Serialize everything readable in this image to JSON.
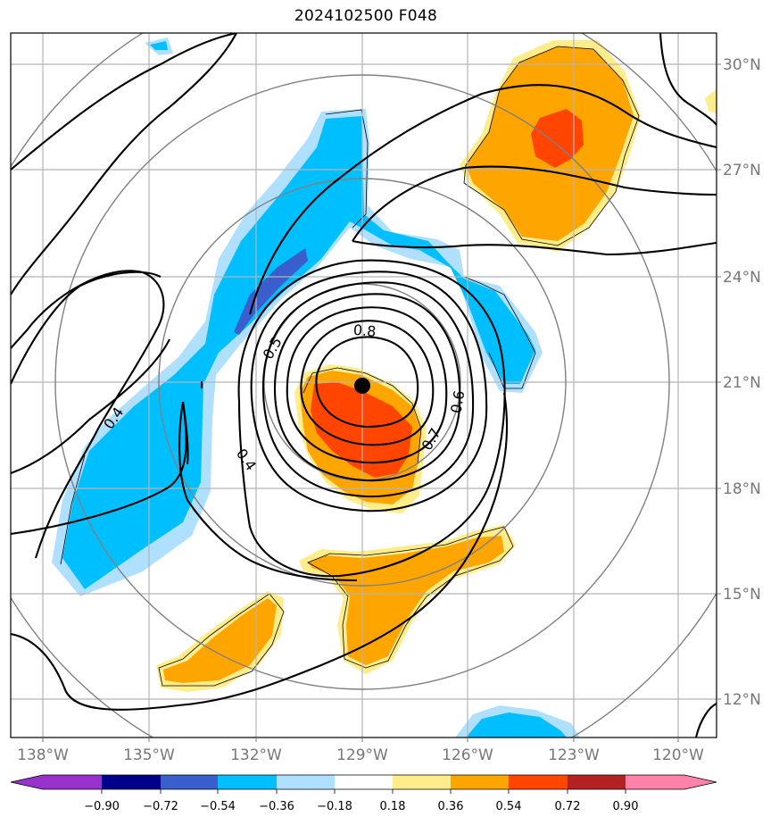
{
  "title": "2024102500 F048",
  "map": {
    "center_marker": {
      "lat": 21.0,
      "lon": -129.0
    },
    "lat_labels": [
      "30°N",
      "27°N",
      "24°N",
      "21°N",
      "18°N",
      "15°N",
      "12°N"
    ],
    "lon_labels": [
      "138°W",
      "135°W",
      "132°W",
      "129°W",
      "126°W",
      "123°W",
      "120°W"
    ],
    "contour_labels": [
      "0.8",
      "0.5",
      "0.6",
      "0.7",
      "0.4",
      "0.4"
    ],
    "gridlines": true,
    "range_rings": 4
  },
  "colorbar": {
    "ticks": [
      "−0.90",
      "−0.72",
      "−0.54",
      "−0.36",
      "−0.18",
      "0.18",
      "0.36",
      "0.54",
      "0.72",
      "0.90"
    ],
    "colors": [
      "#9932CC",
      "#00008B",
      "#3A5FCD",
      "#00BFFF",
      "#B0E0FF",
      "#FFFFFF",
      "#FFEC8B",
      "#FFA500",
      "#FF4500",
      "#B22222",
      "#FF82AB"
    ],
    "extend": "both"
  }
}
